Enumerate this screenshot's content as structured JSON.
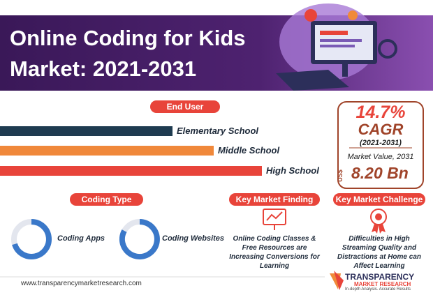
{
  "header": {
    "title_lines": [
      "Online Coding for Kids",
      "Market: 2021-2031"
    ]
  },
  "end_user": {
    "label": "End User",
    "items": [
      "Elementary School",
      "Middle School",
      "High School"
    ]
  },
  "cagr": {
    "value": "14.7%",
    "label": "CAGR",
    "period": "(2021-2031)",
    "market_value_label": "Market Value, 2031",
    "currency": "US$",
    "amount": "8.20 Bn"
  },
  "coding_type": {
    "label": "Coding Type",
    "items": [
      "Coding Apps",
      "Coding Websites"
    ]
  },
  "key_market_finding": {
    "label": "Key Market Finding",
    "text": "Online Coding Classes & Free Resources are Increasing Conversions for Learning"
  },
  "key_market_challenge": {
    "label": "Key Market Challenge",
    "text": "Difficulties in High Streaming Quality and Distractions at Home can Affect Learning"
  },
  "footer": {
    "url": "www.transparencymarketresearch.com",
    "brand": "TRANSPARENCY",
    "brand_sub": "MARKET RESEARCH",
    "tagline": "In-depth Analysis. Accurate Results"
  }
}
